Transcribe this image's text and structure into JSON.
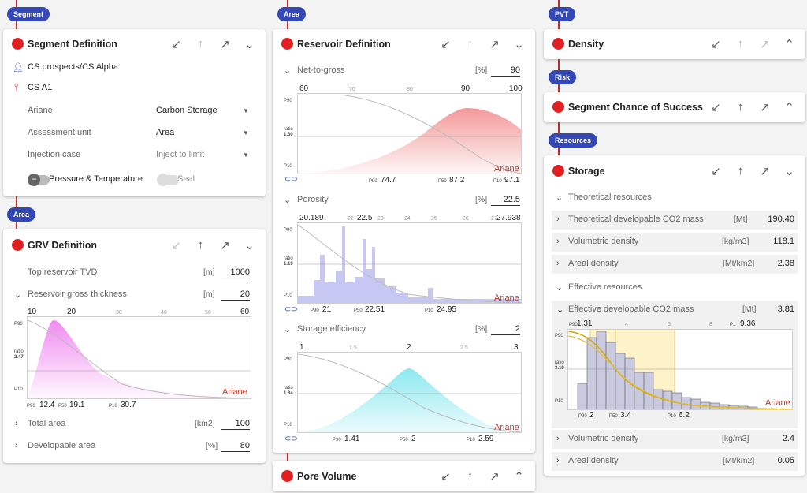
{
  "col1": {
    "segment_pill": "Segment",
    "segment_def": {
      "title": "Segment Definition",
      "prospect": "CS prospects/CS Alpha",
      "well": "CS A1",
      "fields": [
        {
          "label": "Ariane",
          "value": "Carbon Storage"
        },
        {
          "label": "Assessment unit",
          "value": "Area"
        },
        {
          "label": "Injection case",
          "value": "Inject to limit"
        }
      ],
      "toggle1": "Pressure & Temperature",
      "toggle2": "Seal"
    },
    "area_pill": "Area",
    "grv": {
      "title": "GRV Definition",
      "top_label": "Top reservoir TVD",
      "top_unit": "[m]",
      "top_value": "1000",
      "thick_label": "Reservoir gross thickness",
      "thick_unit": "[m]",
      "thick_value": "20",
      "ticks_major": [
        "10",
        "20",
        "60"
      ],
      "ticks_minor": [
        "30",
        "40",
        "50"
      ],
      "p90_label": "P90",
      "p90": "12.4",
      "p50_label": "P50",
      "p50": "19.1",
      "p10_label": "P10",
      "p10": "30.7",
      "ratio_label": "ratio",
      "ratio": "2.47",
      "brand": "Ariane",
      "total_label": "Total area",
      "total_unit": "[km2]",
      "total_value": "100",
      "dev_label": "Developable area",
      "dev_unit": "[%]",
      "dev_value": "80"
    }
  },
  "col2": {
    "area_pill": "Area",
    "reservoir": {
      "title": "Reservoir Definition",
      "ntg": {
        "label": "Net-to-gross",
        "unit": "[%]",
        "value": "90",
        "ticks_major": [
          "60",
          "90",
          "100"
        ],
        "ticks_minor": [
          "70",
          "80"
        ],
        "ratio": "1.30",
        "p90": "74.7",
        "p50": "87.2",
        "p10": "97.1"
      },
      "por": {
        "label": "Porosity",
        "unit": "[%]",
        "value": "22.5",
        "ticks_major": [
          "20.189",
          "22.5",
          "27.938"
        ],
        "ticks_minor": [
          "22",
          "23",
          "24",
          "25",
          "26",
          "27"
        ],
        "ratio": "1.19",
        "p90": "21",
        "p50": "22.51",
        "p10": "24.95"
      },
      "se": {
        "label": "Storage efficiency",
        "unit": "[%]",
        "value": "2",
        "ticks_major": [
          "1",
          "2",
          "3"
        ],
        "ticks_minor": [
          "1.5",
          "2.5"
        ],
        "ratio": "1.84",
        "p90": "1.41",
        "p50": "2",
        "p10": "2.59"
      },
      "p90_label": "P90",
      "p50_label": "P50",
      "p10_label": "P10",
      "ratio_label": "ratio",
      "brand": "Ariane"
    },
    "pore": {
      "title": "Pore Volume"
    }
  },
  "col3": {
    "pvt_pill": "PVT",
    "density": {
      "title": "Density"
    },
    "risk_pill": "Risk",
    "scos": {
      "title": "Segment Chance of Success"
    },
    "res_pill": "Resources",
    "storage": {
      "title": "Storage",
      "theo_header": "Theoretical resources",
      "theo_rows": [
        {
          "label": "Theoretical developable CO2 mass",
          "unit": "[Mt]",
          "value": "190.40"
        },
        {
          "label": "Volumetric density",
          "unit": "[kg/m3]",
          "value": "118.1"
        },
        {
          "label": "Areal density",
          "unit": "[Mt/km2]",
          "value": "2.38"
        }
      ],
      "eff_header": "Effective resources",
      "eff_row": {
        "label": "Effective developable CO2 mass",
        "unit": "[Mt]",
        "value": "3.81"
      },
      "ticks_major": [
        "1.31",
        "9.36"
      ],
      "ticks_minor": [
        "4",
        "6",
        "8"
      ],
      "tick_labels": {
        "p90": "P90",
        "p1": "P1"
      },
      "ratio_label": "ratio",
      "ratio": "3.19",
      "p90_label": "P90",
      "p50_label": "P50",
      "p10_label": "P10",
      "p90": "2",
      "p50": "3.4",
      "p10": "6.2",
      "brand": "Ariane",
      "eff_rows": [
        {
          "label": "Volumetric density",
          "unit": "[kg/m3]",
          "value": "2.4"
        },
        {
          "label": "Areal density",
          "unit": "[Mt/km2]",
          "value": "0.05"
        }
      ]
    }
  },
  "icons": {
    "collapse": "arrow-down-left-icon",
    "up": "arrow-up-icon",
    "expand": "arrow-up-right-icon",
    "chevron": "chevron-icon"
  },
  "colors": {
    "accent": "#3347b5",
    "status": "#e02020",
    "ntg": "#f28b8b",
    "grv": "#ee82ee",
    "por": "#9999ee",
    "se": "#7fe6ee",
    "storage_band": "#fdf2c8"
  }
}
